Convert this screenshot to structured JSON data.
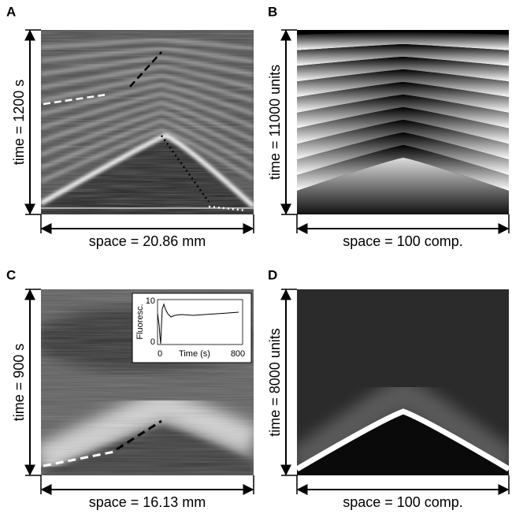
{
  "panels": [
    {
      "label": "A",
      "time_label": "time = 1200 s",
      "space_label": "space = 20.86 mm"
    },
    {
      "label": "B",
      "time_label": "time = 11000 units",
      "space_label": "space = 100 comp."
    },
    {
      "label": "C",
      "time_label": "time = 900 s",
      "space_label": "space = 16.13 mm"
    },
    {
      "label": "D",
      "time_label": "time = 8000 units",
      "space_label": "space = 100 comp."
    }
  ],
  "inset": {
    "y_label": "Fluoresc.",
    "x_label": "Time (s)",
    "y_ticks": [
      10,
      0
    ],
    "x_ticks": [
      0,
      800
    ]
  }
}
